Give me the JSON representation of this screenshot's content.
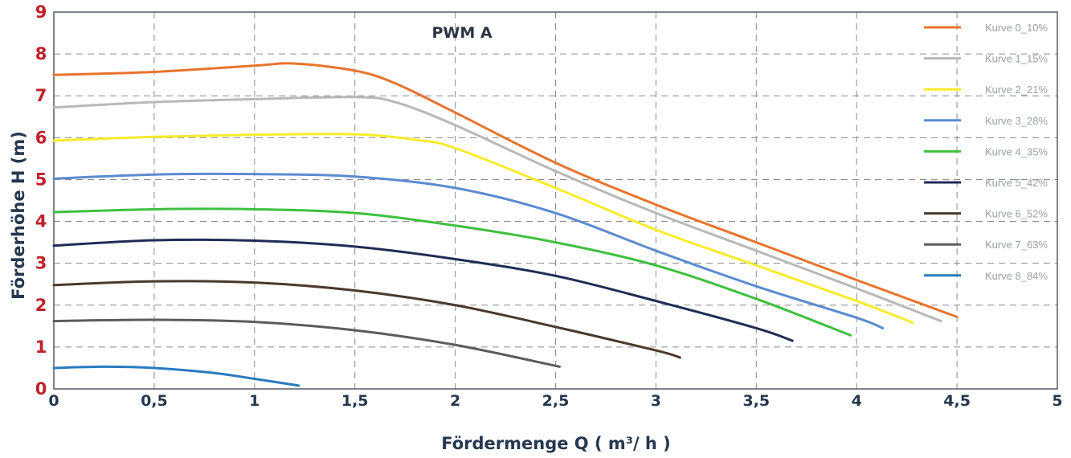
{
  "chart_data": {
    "type": "line",
    "title": "PWM A",
    "xlabel": "Fördermenge  Q ( m³/ h )",
    "ylabel": "Förderhöhe   H (m)",
    "xlim": [
      0,
      5
    ],
    "ylim": [
      0,
      9
    ],
    "xticks": [
      0,
      0.5,
      1,
      1.5,
      2,
      2.5,
      3,
      3.5,
      4,
      4.5,
      5
    ],
    "xtick_labels": [
      "0",
      "0,5",
      "1",
      "1,5",
      "2",
      "2,5",
      "3",
      "3,5",
      "4",
      "4,5",
      "5"
    ],
    "yticks": [
      0,
      1,
      2,
      3,
      4,
      5,
      6,
      7,
      8,
      9
    ],
    "ytick_labels": [
      "0",
      "1",
      "2",
      "3",
      "4",
      "5",
      "6",
      "7",
      "8",
      "9"
    ],
    "grid": true,
    "legend_position": "top-right",
    "series": [
      {
        "name": "Kurve 0_10%",
        "color": "#e8742c",
        "x": [
          0,
          0.5,
          1.0,
          1.2,
          1.5,
          1.7,
          2.0,
          2.5,
          3.0,
          3.5,
          4.0,
          4.5
        ],
        "y": [
          7.5,
          7.57,
          7.72,
          7.77,
          7.6,
          7.3,
          6.6,
          5.4,
          4.4,
          3.5,
          2.6,
          1.72
        ]
      },
      {
        "name": "Kurve 1_15%",
        "color": "#b8b8b8",
        "x": [
          0,
          0.5,
          1.0,
          1.5,
          1.7,
          2.0,
          2.5,
          3.0,
          3.5,
          4.0,
          4.42
        ],
        "y": [
          6.72,
          6.85,
          6.92,
          6.97,
          6.85,
          6.3,
          5.2,
          4.2,
          3.3,
          2.4,
          1.62
        ]
      },
      {
        "name": "Kurve 2_21%",
        "color": "#f6ec2a",
        "x": [
          0,
          0.5,
          1.0,
          1.5,
          1.8,
          2.0,
          2.5,
          3.0,
          3.5,
          4.0,
          4.28
        ],
        "y": [
          5.93,
          6.02,
          6.07,
          6.08,
          5.95,
          5.75,
          4.8,
          3.8,
          2.95,
          2.1,
          1.58
        ]
      },
      {
        "name": "Kurve 3_28%",
        "color": "#5b8bd0",
        "x": [
          0,
          0.5,
          1.0,
          1.5,
          2.0,
          2.5,
          3.0,
          3.5,
          4.0,
          4.13
        ],
        "y": [
          5.02,
          5.12,
          5.13,
          5.07,
          4.8,
          4.2,
          3.3,
          2.45,
          1.7,
          1.45
        ]
      },
      {
        "name": "Kurve 4_35%",
        "color": "#3ec03e",
        "x": [
          0,
          0.5,
          1.0,
          1.5,
          2.0,
          2.5,
          3.0,
          3.5,
          3.97
        ],
        "y": [
          4.22,
          4.29,
          4.29,
          4.2,
          3.9,
          3.5,
          2.95,
          2.15,
          1.28
        ]
      },
      {
        "name": "Kurve 5_42%",
        "color": "#1f2d55",
        "x": [
          0,
          0.5,
          1.0,
          1.5,
          2.0,
          2.5,
          3.0,
          3.5,
          3.68
        ],
        "y": [
          3.42,
          3.55,
          3.54,
          3.4,
          3.1,
          2.7,
          2.1,
          1.45,
          1.15
        ]
      },
      {
        "name": "Kurve 6_52%",
        "color": "#4a3a2c",
        "x": [
          0,
          0.5,
          1.0,
          1.5,
          2.0,
          2.5,
          3.0,
          3.12
        ],
        "y": [
          2.48,
          2.57,
          2.54,
          2.35,
          2.0,
          1.48,
          0.92,
          0.75
        ]
      },
      {
        "name": "Kurve 7_63%",
        "color": "#5c5c5c",
        "x": [
          0,
          0.5,
          1.0,
          1.5,
          2.0,
          2.52
        ],
        "y": [
          1.62,
          1.65,
          1.6,
          1.4,
          1.05,
          0.53
        ]
      },
      {
        "name": "Kurve 8_84%",
        "color": "#2a7bc0",
        "x": [
          0,
          0.25,
          0.5,
          0.8,
          1.0,
          1.22
        ],
        "y": [
          0.5,
          0.53,
          0.5,
          0.38,
          0.24,
          0.08
        ]
      }
    ]
  }
}
